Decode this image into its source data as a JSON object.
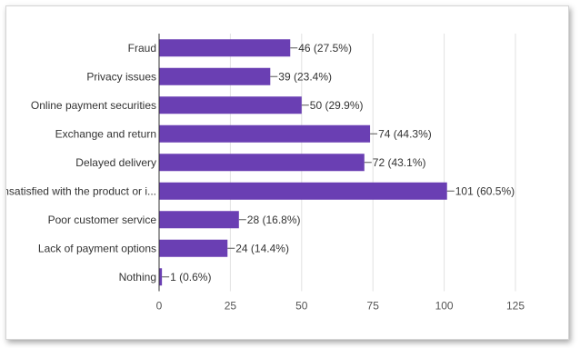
{
  "chart_data": {
    "type": "bar",
    "orientation": "horizontal",
    "categories": [
      "Fraud",
      "Privacy issues",
      "Online payment securities",
      "Exchange and return",
      "Delayed delivery",
      "nsatisfied with the product or i...",
      "Poor customer service",
      "Lack of payment options",
      "Nothing"
    ],
    "values": [
      46,
      39,
      50,
      74,
      72,
      101,
      28,
      24,
      1
    ],
    "data_labels": [
      "46 (27.5%)",
      "39 (23.4%)",
      "50 (29.9%)",
      "74 (44.3%)",
      "72 (43.1%)",
      "101 (60.5%)",
      "28 (16.8%)",
      "24 (14.4%)",
      "1 (0.6%)"
    ],
    "xlim": [
      0,
      125
    ],
    "xticks": [
      "0",
      "25",
      "50",
      "75",
      "100",
      "125"
    ],
    "grid": true,
    "bar_color": "#6a3fb3"
  }
}
